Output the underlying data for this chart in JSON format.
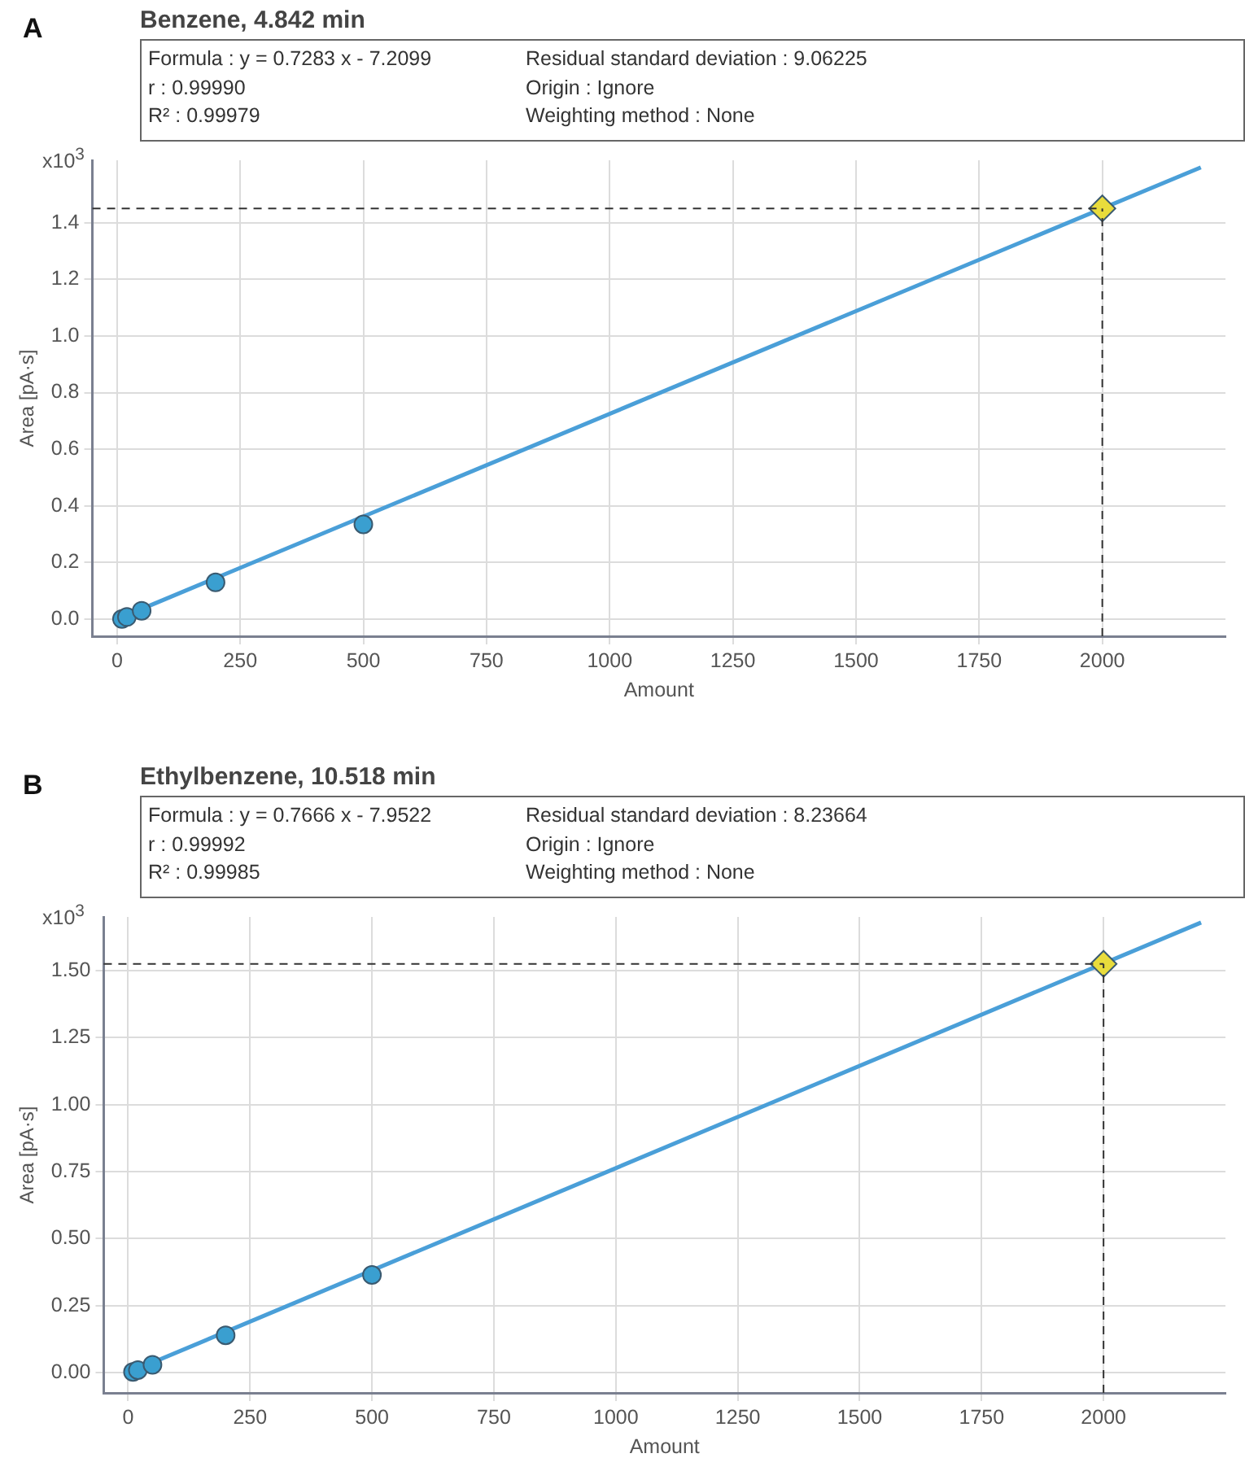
{
  "chart_data": [
    {
      "type": "scatter",
      "title": "Benzene, 4.842 min",
      "xlabel": "Amount",
      "ylabel": "Area [pA·s]",
      "annotations": [
        "A",
        "Formula : y = 0.7283 x - 7.2099",
        "r : 0.99990",
        "R² : 0.99979",
        "Residual standard deviation : 9.06225",
        "Origin : Ignore",
        "Weighting method : None",
        "x10$^{3}$"
      ],
      "series": [
        {
          "type": "line",
          "color": "#4a9fd8",
          "marker": "none",
          "x": [
            0,
            2200
          ],
          "values": [
            0,
            1.595
          ]
        },
        {
          "color": "#3a9fd0",
          "marker": "circle",
          "x": [
            10,
            20,
            50,
            200,
            500
          ],
          "values": [
            0.001,
            0.008,
            0.03,
            0.13,
            0.335
          ]
        },
        {
          "color": "#e8dc3c",
          "marker": "diamond",
          "x": [
            2000
          ],
          "values": [
            1.45
          ]
        }
      ],
      "ref_lines": [
        {
          "axis": "x",
          "value": 2000,
          "line_style": "dashed",
          "color": "#333333"
        },
        {
          "axis": "y",
          "value": 1.45,
          "line_style": "dashed",
          "color": "#333333"
        }
      ],
      "xlim": [
        -50,
        2250
      ],
      "ylim": [
        -0.06,
        1.62
      ],
      "xticks": [
        0,
        250,
        500,
        750,
        1000,
        1250,
        1500,
        1750,
        2000
      ],
      "yticks": [
        {
          "value": 0,
          "label": "0.0"
        },
        {
          "value": 0.2,
          "label": "0.2"
        },
        {
          "value": 0.4,
          "label": "0.4"
        },
        {
          "value": 0.6,
          "label": "0.6"
        },
        {
          "value": 0.8,
          "label": "0.8"
        },
        {
          "value": 1,
          "label": "1.0"
        },
        {
          "value": 1.2,
          "label": "1.2"
        },
        {
          "value": 1.4,
          "label": "1.4"
        }
      ],
      "grid": true,
      "legend": false
    },
    {
      "type": "scatter",
      "title": "Ethylbenzene, 10.518 min",
      "xlabel": "Amount",
      "ylabel": "Area [pA·s]",
      "annotations": [
        "B",
        "Formula : y = 0.7666 x - 7.9522",
        "r : 0.99992",
        "R² : 0.99985",
        "Residual standard deviation : 8.23664",
        "Origin : Ignore",
        "Weighting method : None",
        "x10$^{3}$"
      ],
      "series": [
        {
          "type": "line",
          "color": "#4a9fd8",
          "marker": "none",
          "x": [
            0,
            2200
          ],
          "values": [
            0,
            1.679
          ]
        },
        {
          "color": "#3a9fd0",
          "marker": "circle",
          "x": [
            10,
            20,
            50,
            200,
            500
          ],
          "values": [
            0.003,
            0.01,
            0.03,
            0.14,
            0.365
          ]
        },
        {
          "color": "#e8dc3c",
          "marker": "diamond",
          "x": [
            2000
          ],
          "values": [
            1.525
          ]
        }
      ],
      "ref_lines": [
        {
          "axis": "x",
          "value": 2000,
          "line_style": "dashed",
          "color": "#333333"
        },
        {
          "axis": "y",
          "value": 1.525,
          "line_style": "dashed",
          "color": "#333333"
        }
      ],
      "xlim": [
        -50,
        2250
      ],
      "ylim": [
        -0.075,
        1.7
      ],
      "xticks": [
        0,
        250,
        500,
        750,
        1000,
        1250,
        1500,
        1750,
        2000
      ],
      "yticks": [
        {
          "value": 0,
          "label": "0.00"
        },
        {
          "value": 0.25,
          "label": "0.25"
        },
        {
          "value": 0.5,
          "label": "0.50"
        },
        {
          "value": 0.75,
          "label": "0.75"
        },
        {
          "value": 1,
          "label": "1.00"
        },
        {
          "value": 1.25,
          "label": "1.25"
        },
        {
          "value": 1.5,
          "label": "1.50"
        }
      ],
      "grid": true,
      "legend": false
    }
  ]
}
